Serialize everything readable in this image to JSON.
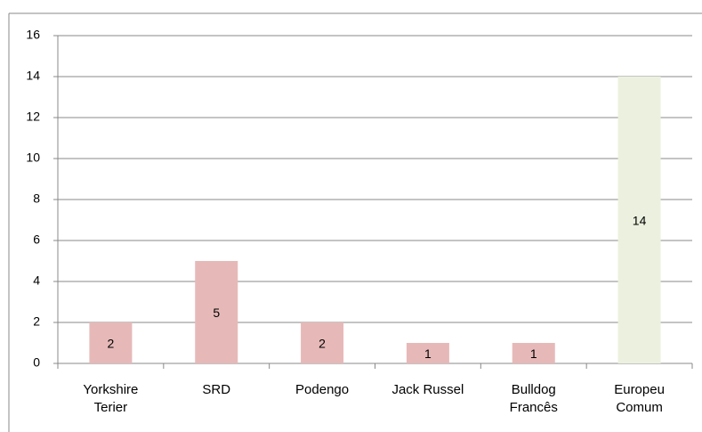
{
  "chart_data": {
    "type": "bar",
    "categories": [
      "Yorkshire Terier",
      "SRD",
      "Podengo",
      "Jack Russel",
      "Bulldog Francês",
      "Europeu Comum"
    ],
    "values": [
      2,
      5,
      2,
      1,
      1,
      14
    ],
    "colors": [
      "#e6b9b8",
      "#e6b9b8",
      "#e6b9b8",
      "#e6b9b8",
      "#e6b9b8",
      "#ebf1de"
    ],
    "ylim": [
      0,
      16
    ],
    "yticks": [
      0,
      2,
      4,
      6,
      8,
      10,
      12,
      14,
      16
    ],
    "grid": true
  }
}
